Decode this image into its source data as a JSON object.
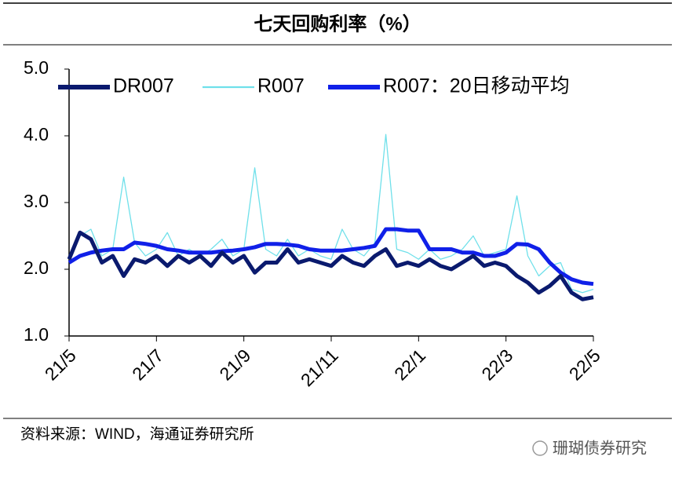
{
  "chart_data": {
    "type": "line",
    "title": "七天回购利率（%）",
    "source": "资料来源：WIND，海通证券研究所",
    "watermark": "珊瑚债券研究",
    "categories": [
      "21/5",
      null,
      null,
      null,
      null,
      null,
      null,
      null,
      "21/7",
      null,
      null,
      null,
      null,
      null,
      null,
      null,
      "21/9",
      null,
      null,
      null,
      null,
      null,
      null,
      null,
      "21/11",
      null,
      null,
      null,
      null,
      null,
      null,
      null,
      "22/1",
      null,
      null,
      null,
      null,
      null,
      null,
      null,
      "22/3",
      null,
      null,
      null,
      null,
      null,
      null,
      null,
      "22/5"
    ],
    "series": [
      {
        "name": "DR007",
        "color": "#0a1a6e",
        "width": 5,
        "values": [
          2.15,
          2.55,
          2.45,
          2.1,
          2.2,
          1.9,
          2.15,
          2.1,
          2.2,
          2.05,
          2.2,
          2.1,
          2.2,
          2.05,
          2.25,
          2.1,
          2.2,
          1.95,
          2.1,
          2.1,
          2.3,
          2.1,
          2.15,
          2.1,
          2.05,
          2.2,
          2.1,
          2.05,
          2.2,
          2.3,
          2.05,
          2.1,
          2.05,
          2.15,
          2.05,
          2.0,
          2.1,
          2.2,
          2.05,
          2.1,
          2.05,
          1.9,
          1.8,
          1.65,
          1.75,
          1.9,
          1.65,
          1.55,
          1.58
        ]
      },
      {
        "name": "R007",
        "color": "#6fe0ea",
        "width": 1.3,
        "values": [
          2.2,
          2.5,
          2.6,
          2.2,
          2.3,
          3.38,
          2.4,
          2.2,
          2.3,
          2.55,
          2.2,
          2.3,
          2.2,
          2.3,
          2.45,
          2.2,
          2.3,
          3.52,
          2.3,
          2.2,
          2.45,
          2.2,
          2.3,
          2.2,
          2.15,
          2.6,
          2.3,
          2.2,
          2.4,
          4.02,
          2.3,
          2.25,
          2.15,
          2.3,
          2.15,
          2.2,
          2.3,
          2.5,
          2.2,
          2.25,
          2.3,
          3.1,
          2.2,
          1.9,
          2.05,
          2.1,
          1.7,
          1.65,
          1.7
        ]
      },
      {
        "name": "R007：20日移动平均",
        "color": "#1020e8",
        "width": 5,
        "values": [
          2.1,
          2.2,
          2.25,
          2.28,
          2.3,
          2.3,
          2.4,
          2.38,
          2.35,
          2.3,
          2.28,
          2.25,
          2.25,
          2.25,
          2.27,
          2.28,
          2.3,
          2.33,
          2.38,
          2.38,
          2.37,
          2.35,
          2.3,
          2.28,
          2.28,
          2.28,
          2.3,
          2.32,
          2.35,
          2.6,
          2.6,
          2.58,
          2.58,
          2.3,
          2.3,
          2.3,
          2.25,
          2.25,
          2.2,
          2.2,
          2.25,
          2.38,
          2.37,
          2.3,
          2.1,
          1.95,
          1.85,
          1.8,
          1.78
        ]
      }
    ],
    "ylim": [
      1,
      5
    ],
    "yticks": [
      {
        "value": 1,
        "label": "1.0"
      },
      {
        "value": 2,
        "label": "2.0"
      },
      {
        "value": 3,
        "label": "3.0"
      },
      {
        "value": 4,
        "label": "4.0"
      },
      {
        "value": 5,
        "label": "5.0"
      }
    ],
    "grid": false,
    "legend": "top"
  }
}
